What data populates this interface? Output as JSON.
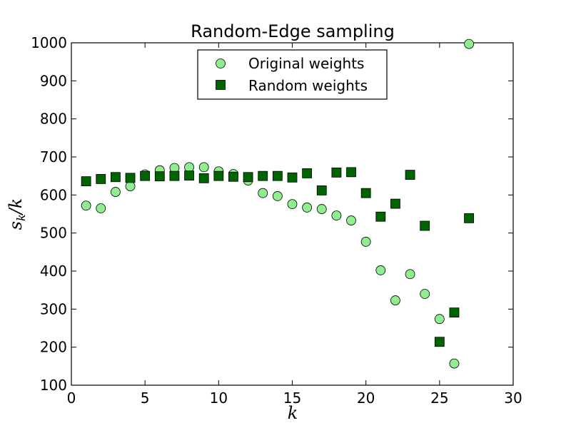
{
  "chart_data": {
    "type": "scatter",
    "title": "Random-Edge sampling",
    "xlabel": "k",
    "ylabel": "s_k / k",
    "ylabel_display": {
      "s": "s",
      "sub": "k",
      "rest": "/k"
    },
    "xlim": [
      0,
      30
    ],
    "ylim": [
      100,
      1000
    ],
    "xticks": [
      0,
      5,
      10,
      15,
      20,
      25,
      30
    ],
    "yticks": [
      100,
      200,
      300,
      400,
      500,
      600,
      700,
      800,
      900,
      1000
    ],
    "grid": false,
    "legend_position": "upper-center",
    "series": [
      {
        "name": "Original weights",
        "marker": "circle",
        "color": "#90ee90",
        "x": [
          1,
          2,
          3,
          4,
          5,
          6,
          7,
          8,
          9,
          10,
          11,
          12,
          13,
          14,
          15,
          16,
          17,
          18,
          19,
          20,
          21,
          22,
          23,
          24,
          25,
          26,
          27
        ],
        "y": [
          572,
          565,
          608,
          623,
          654,
          665,
          671,
          673,
          673,
          662,
          655,
          638,
          605,
          597,
          576,
          567,
          563,
          546,
          533,
          477,
          402,
          323,
          392,
          340,
          274,
          157,
          997
        ]
      },
      {
        "name": "Random weights",
        "marker": "square",
        "color": "#006400",
        "x": [
          1,
          2,
          3,
          4,
          5,
          6,
          7,
          8,
          9,
          10,
          11,
          12,
          13,
          14,
          15,
          16,
          17,
          18,
          19,
          20,
          21,
          22,
          23,
          24,
          25,
          26,
          27
        ],
        "y": [
          636,
          642,
          647,
          645,
          650,
          649,
          650,
          651,
          644,
          650,
          648,
          647,
          650,
          650,
          646,
          657,
          612,
          659,
          660,
          605,
          543,
          577,
          653,
          519,
          214,
          291,
          539
        ]
      }
    ]
  }
}
